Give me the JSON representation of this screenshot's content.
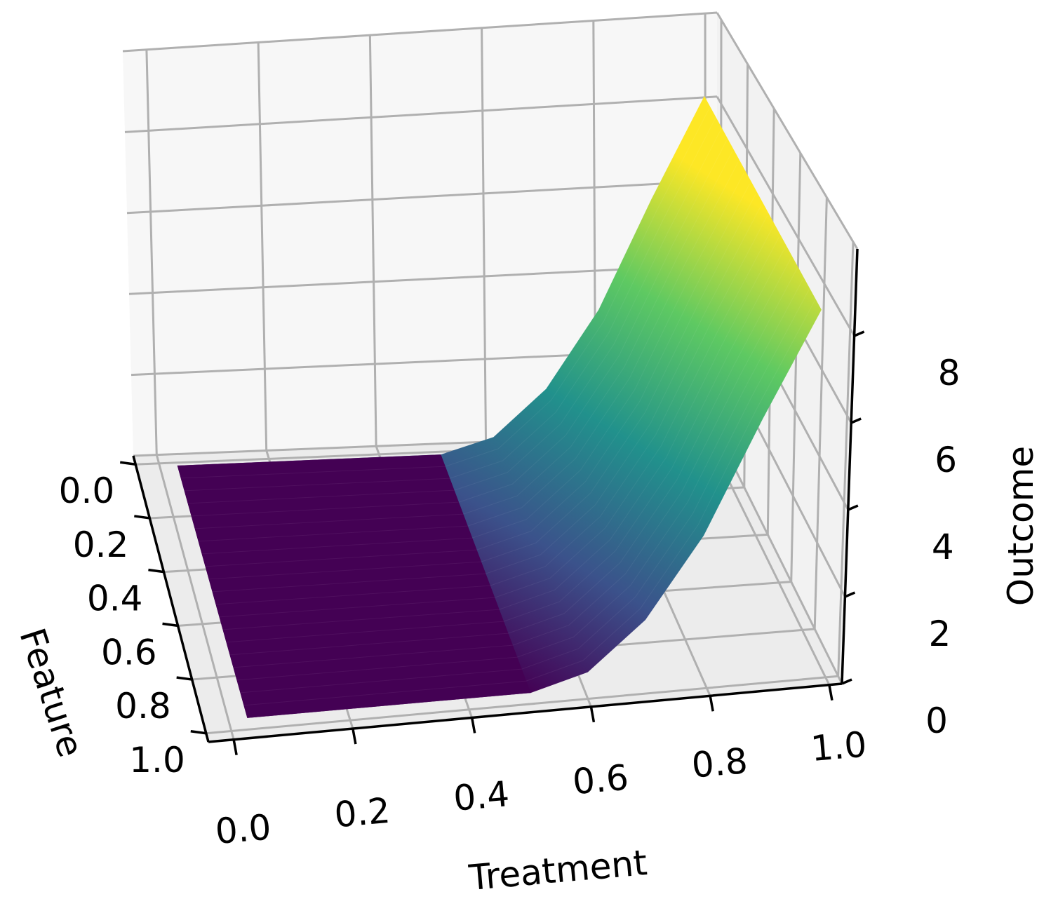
{
  "chart_data": {
    "type": "surface",
    "title": "",
    "xlabel": "Treatment",
    "ylabel": "Feature",
    "zlabel": "Outcome",
    "x_ticks": [
      "0.0",
      "0.2",
      "0.4",
      "0.6",
      "0.8",
      "1.0"
    ],
    "y_ticks": [
      "0.0",
      "0.2",
      "0.4",
      "0.6",
      "0.8",
      "1.0"
    ],
    "z_ticks": [
      "0",
      "2",
      "4",
      "6",
      "8"
    ],
    "xlim": [
      0,
      1
    ],
    "ylim": [
      0,
      1
    ],
    "zlim": [
      0,
      10
    ],
    "colormap": "viridis",
    "grid": true,
    "surface": {
      "description_of_shape": "flat at 0 for Treatment below 0.5, then rising quadratically",
      "x": [
        0.0,
        0.1,
        0.2,
        0.3,
        0.4,
        0.5,
        0.6,
        0.7,
        0.8,
        0.9,
        1.0
      ],
      "outcome_at_feature_0": [
        0.0,
        0.0,
        0.0,
        0.0,
        0.0,
        0.0,
        0.4,
        1.6,
        3.6,
        6.4,
        9.0
      ],
      "outcome_at_feature_1": [
        0.0,
        0.0,
        0.0,
        0.0,
        0.0,
        0.0,
        0.4,
        1.6,
        3.6,
        6.4,
        9.0
      ]
    },
    "colors": {
      "low": "#440154",
      "mid_low": "#3b528b",
      "mid": "#21918c",
      "mid_high": "#5ec962",
      "high": "#fde725"
    }
  }
}
